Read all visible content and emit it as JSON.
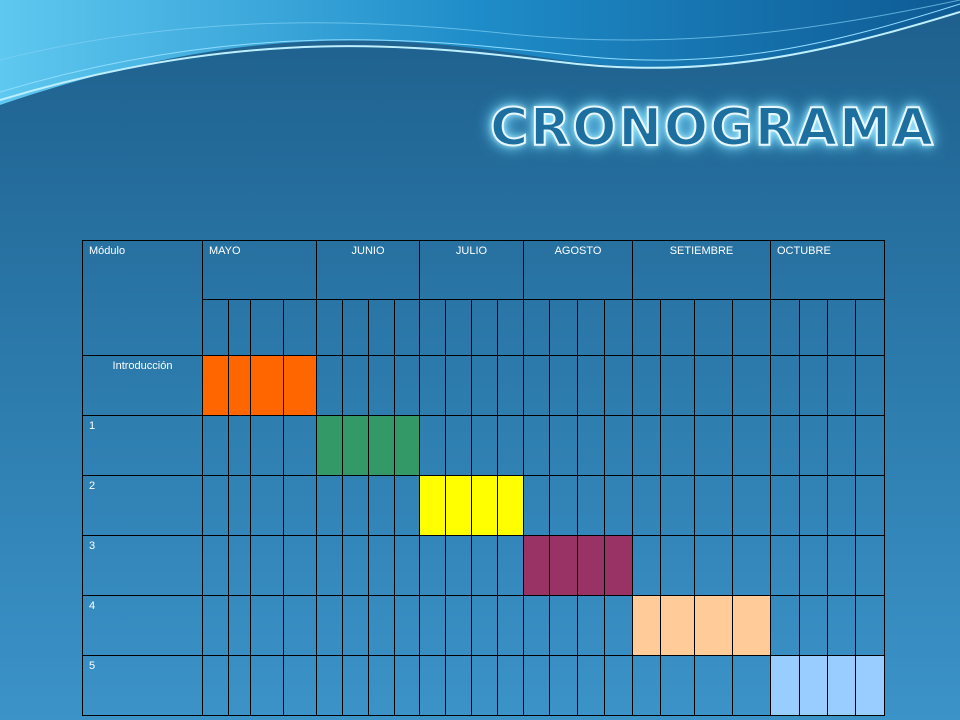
{
  "title": "CRONOGRAMA",
  "table": {
    "header_module": "Módulo",
    "months": [
      "MAYO",
      "JUNIO",
      "JULIO",
      "AGOSTO",
      "SETIEMBRE",
      "OCTUBRE"
    ],
    "weeks_per_month": 4,
    "rows": [
      {
        "label": "Introducción",
        "month": 0,
        "color": "#FF6600"
      },
      {
        "label": "1",
        "month": 1,
        "color": "#339966"
      },
      {
        "label": "2",
        "month": 2,
        "color": "#FFFF00"
      },
      {
        "label": "3",
        "month": 3,
        "color": "#993366"
      },
      {
        "label": "4",
        "month": 4,
        "color": "#FFCC99"
      },
      {
        "label": "5",
        "month": 5,
        "color": "#99CCFF"
      }
    ]
  },
  "colors": {
    "background_top": "#1e5f8c",
    "background_bottom": "#3b93c8",
    "grid_line": "#000000"
  }
}
